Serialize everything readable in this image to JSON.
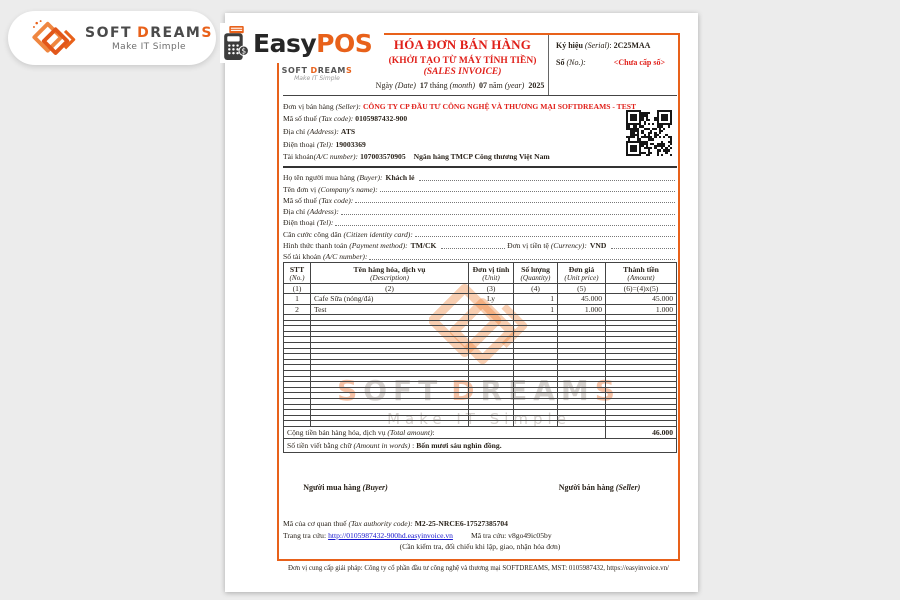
{
  "canvas": {
    "bg": "#ececec",
    "page_bg": "#ffffff"
  },
  "colors": {
    "orange": "#e8611a",
    "red": "#e0201a",
    "link": "#1414cc",
    "text": "#2b241c",
    "table_border": "#444444"
  },
  "icons": {
    "diamond": "soft-dreams-diamond",
    "pos_terminal": "pos-terminal",
    "qr": "qr-code"
  },
  "brand": {
    "logo_parts": [
      "S",
      "OFT",
      "D",
      "REAM",
      "S"
    ],
    "tagline": "Make IT Simple",
    "easypos": {
      "e1": "Easy",
      "e2": "POS"
    }
  },
  "header": {
    "title": "HÓA ĐƠN BÁN HÀNG",
    "subtitle": "(KHỞI TẠO TỪ MÁY TÍNH TIỀN)",
    "subtitle_en": "(SALES INVOICE)",
    "date": {
      "w1": "Ngày",
      "e1": "(Date)",
      "day": "17",
      "w2": "tháng",
      "e2": "(month)",
      "month": "07",
      "w3": "năm",
      "e3": "(year)",
      "year": "2025"
    },
    "serial": {
      "vi": "Ký hiệu",
      "en": "(Serial)",
      "colon": ":",
      "value": "2C25MAA"
    },
    "number": {
      "vi": "Số",
      "en": "(No.):",
      "value": "<Chưa cấp số>"
    }
  },
  "seller": {
    "name": {
      "vi": "Đơn vị bán hàng",
      "en": "(Seller):",
      "value": "CÔNG TY CP ĐẦU TƯ CÔNG NGHỆ VÀ THƯƠNG MẠI SOFTDREAMS - TEST"
    },
    "tax": {
      "vi": "Mã số thuế",
      "en": "(Tax code):",
      "value": "0105987432-900"
    },
    "address": {
      "vi": "Địa chỉ",
      "en": "(Address):",
      "value": "ATS"
    },
    "phone": {
      "vi": "Điện thoại",
      "en": "(Tel):",
      "value": "19003369"
    },
    "account": {
      "vi": "Tài khoản",
      "en": "(A/C number):",
      "number": "107003570905",
      "bank": "Ngân hàng TMCP Công thương Việt Nam"
    }
  },
  "buyer": {
    "name": {
      "vi": "Họ tên người mua hàng",
      "en": "(Buyer):",
      "value": "Khách lẻ"
    },
    "company": {
      "vi": "Tên đơn vị",
      "en": "(Company's name):",
      "value": ""
    },
    "tax": {
      "vi": "Mã số thuế",
      "en": "(Tax code):",
      "value": ""
    },
    "address": {
      "vi": "Địa chỉ",
      "en": "(Address):",
      "value": ""
    },
    "phone": {
      "vi": "Điện thoại",
      "en": "(Tel):",
      "value": ""
    },
    "cid": {
      "vi": "Căn cước công dân",
      "en": "(Citizen identity card):",
      "value": ""
    },
    "payment": {
      "vi": "Hình thức thanh toán",
      "en": "(Payment method):",
      "value": "TM/CK"
    },
    "currency": {
      "vi": "Đơn vị tiền tệ",
      "en": "(Currency):",
      "value": "VND"
    },
    "account": {
      "vi": "Số tài khoản",
      "en": "(A/C number):",
      "value": ""
    }
  },
  "table": {
    "headers": [
      {
        "vi": "STT",
        "en": "(No.)"
      },
      {
        "vi": "Tên hàng hóa, dịch vụ",
        "en": "(Description)"
      },
      {
        "vi": "Đơn vị tính",
        "en": "(Unit)"
      },
      {
        "vi": "Số lượng",
        "en": "(Quantity)"
      },
      {
        "vi": "Đơn giá",
        "en": "(Unit price)"
      },
      {
        "vi": "Thành tiền",
        "en": "(Amount)"
      }
    ],
    "subheaders": [
      "(1)",
      "(2)",
      "(3)",
      "(4)",
      "(5)",
      "(6)=(4)x(5)"
    ],
    "rows": [
      [
        "1",
        "Cafe Sữa (nóng/đá)",
        "Ly",
        "1",
        "45.000",
        "45.000"
      ],
      [
        "2",
        "Test",
        "",
        "1",
        "1.000",
        "1.000"
      ]
    ],
    "empty_row_count": 20,
    "total": {
      "vi": "Cộng tiền bán hàng hóa, dịch vụ",
      "en": "(Total amount)",
      "colon": ":",
      "value": "46.000"
    },
    "amount_words": {
      "vi": "Số tiền viết bằng chữ",
      "en": "(Amount in words)",
      "colon": ":",
      "value": "Bốn mươi sáu nghìn đồng."
    }
  },
  "signatures": {
    "buyer_vi": "Người mua hàng",
    "buyer_en": "(Buyer)",
    "seller_vi": "Người bán hàng",
    "seller_en": "(Seller)"
  },
  "footer": {
    "tax_code": {
      "vi": "Mã của cơ quan thuế",
      "en": "(Tax authority code):",
      "value": "M2-25-NRCE6-17527385704"
    },
    "lookup": {
      "label": "Trang tra cứu:",
      "url": "http://0105987432-900hd.easyinvoice.vn",
      "code_label": "Mã tra cứu:",
      "code": "v8go49ic05by"
    },
    "note": "(Cần kiểm tra, đối chiếu khi lập, giao, nhận hóa đơn)",
    "provider": "Đơn vị cung cấp giải pháp: Công ty cổ phần đầu tư công nghệ và thương mại SOFTDREAMS, MST: 0105987432, https://easyinvoice.vn/"
  }
}
